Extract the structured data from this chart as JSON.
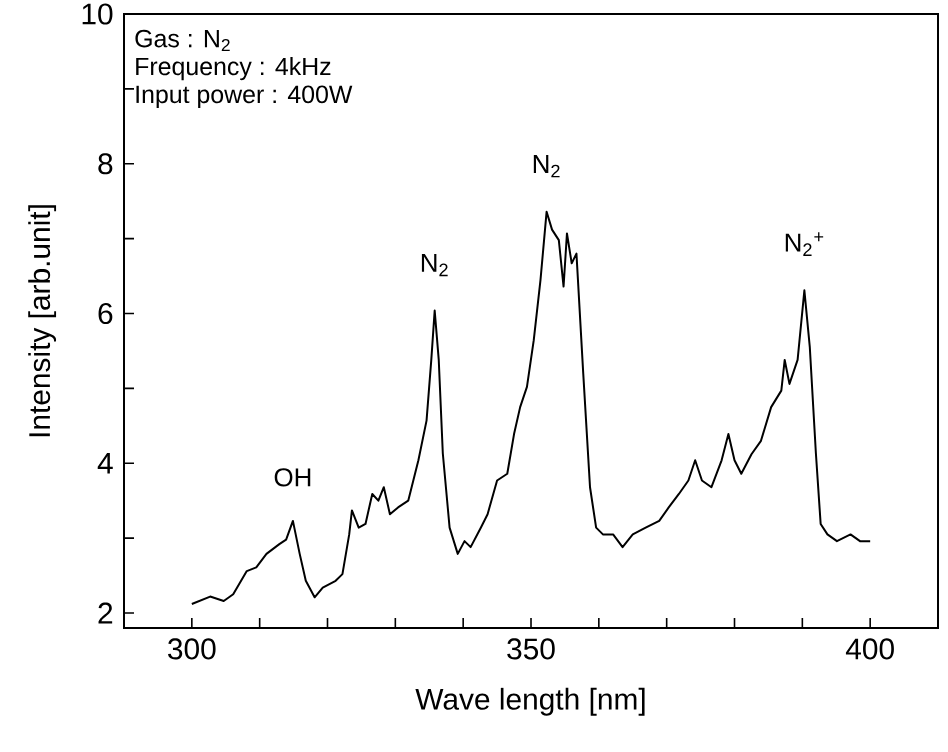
{
  "chart_data": {
    "type": "line",
    "xlabel": "Wave length [nm]",
    "ylabel": "Intensity [arb.unit]",
    "xlim": [
      290,
      410
    ],
    "ylim": [
      1.8,
      10
    ],
    "xticks": [
      300,
      {
        "value": 310,
        "label": null
      },
      {
        "value": 320,
        "label": null
      },
      {
        "value": 330,
        "label": null
      },
      {
        "value": 340,
        "label": null
      },
      350,
      {
        "value": 360,
        "label": null
      },
      {
        "value": 370,
        "label": null
      },
      {
        "value": 380,
        "label": null
      },
      {
        "value": 390,
        "label": null
      },
      400
    ],
    "yticks": [
      2,
      {
        "value": 3,
        "label": null
      },
      4,
      {
        "value": 5,
        "label": null
      },
      6,
      {
        "value": 7,
        "label": null
      },
      8,
      {
        "value": 9,
        "label": null
      },
      10
    ],
    "grid": false,
    "marker": "none",
    "line_style": "solid",
    "x": [
      300,
      302.7,
      304.7,
      306.1,
      308.1,
      309.5,
      311,
      312.9,
      313.9,
      314.9,
      315.9,
      316.8,
      318.1,
      319.3,
      321.2,
      322.2,
      323.2,
      323.6,
      324.6,
      325.6,
      326.6,
      327.5,
      328.3,
      329.2,
      330.4,
      331.9,
      333.4,
      334.6,
      335.3,
      335.8,
      336.4,
      337,
      338,
      339.2,
      340.2,
      341.1,
      342.6,
      343.6,
      345,
      346.5,
      347.5,
      348.4,
      349.4,
      350.4,
      351.4,
      352.3,
      353.1,
      354.1,
      354.8,
      355.3,
      356,
      356.7,
      357.7,
      358.7,
      359.6,
      360.6,
      362.1,
      363.5,
      365,
      366.9,
      368.9,
      370.3,
      371.8,
      373.2,
      374.2,
      375.2,
      376.6,
      378.1,
      379.1,
      380,
      381,
      382.5,
      383.9,
      385.4,
      386.9,
      387.4,
      388.1,
      389.3,
      390.3,
      391.1,
      392,
      392.7,
      393.7,
      395.1,
      397.1,
      398.5,
      400
    ],
    "series": [
      {
        "color": "#000000",
        "values": [
          2.12,
          2.22,
          2.16,
          2.25,
          2.56,
          2.61,
          2.79,
          2.92,
          2.98,
          3.23,
          2.79,
          2.43,
          2.21,
          2.34,
          2.43,
          2.52,
          3.05,
          3.37,
          3.14,
          3.19,
          3.59,
          3.5,
          3.68,
          3.32,
          3.41,
          3.5,
          4.04,
          4.57,
          5.38,
          6.04,
          5.38,
          4.13,
          3.14,
          2.79,
          2.96,
          2.88,
          3.14,
          3.32,
          3.77,
          3.86,
          4.39,
          4.75,
          5.02,
          5.64,
          6.45,
          7.36,
          7.12,
          6.98,
          6.36,
          7.07,
          6.67,
          6.8,
          5.2,
          3.68,
          3.14,
          3.05,
          3.05,
          2.88,
          3.05,
          3.14,
          3.23,
          3.41,
          3.59,
          3.77,
          4.04,
          3.77,
          3.68,
          4.04,
          4.39,
          4.04,
          3.86,
          4.12,
          4.3,
          4.75,
          4.97,
          5.38,
          5.06,
          5.38,
          6.31,
          5.55,
          4.13,
          3.19,
          3.05,
          2.96,
          3.05,
          2.96,
          2.96
        ]
      }
    ],
    "annotations": [
      "Gas : N$_{2}$",
      "Frequency : 4kHz",
      "Input power : 400W",
      {
        "text": "OH",
        "x": 314.9,
        "y": 3.23
      },
      {
        "text": "N$_{2}$",
        "x": 335.8,
        "y": 6.04
      },
      {
        "text": "N$_{2}$",
        "x": 352.3,
        "y": 7.36
      },
      {
        "text": "N$_{2}$$^{+}$",
        "x": 390.3,
        "y": 6.31
      }
    ]
  }
}
